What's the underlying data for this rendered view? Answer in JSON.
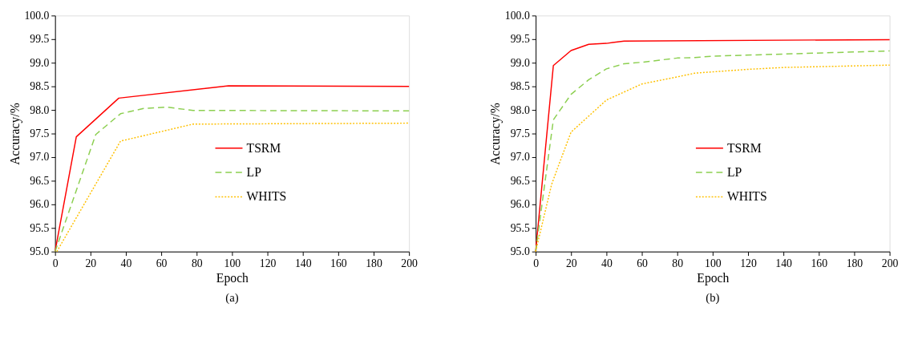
{
  "chart_data": [
    {
      "type": "line",
      "title": "(a)",
      "xlabel": "Epoch",
      "ylabel": "Accuracy/%",
      "xlim": [
        0,
        200
      ],
      "xticks": [
        0,
        20,
        40,
        60,
        80,
        100,
        120,
        140,
        160,
        180,
        200
      ],
      "ylim": [
        95.0,
        100.0
      ],
      "yticks": [
        {
          "value": 95,
          "label": "95.0"
        },
        95.5,
        {
          "value": 96,
          "label": "96.0"
        },
        96.5,
        {
          "value": 97,
          "label": "97.0"
        },
        97.5,
        {
          "value": 98,
          "label": "98.0"
        },
        98.5,
        {
          "value": 99,
          "label": "99.0"
        },
        99.5,
        {
          "value": 100,
          "label": "100.0"
        }
      ],
      "grid": false,
      "legend": "right",
      "marker": "none",
      "series": [
        {
          "name": "TSRM",
          "color": "#ff0000",
          "line_style": "solid",
          "x": [
            0,
            12,
            36,
            98,
            200
          ],
          "values": [
            95.0,
            97.43,
            98.25,
            98.51,
            98.5
          ]
        },
        {
          "name": "LP",
          "color": "#8ccf50",
          "line_style": "dashed",
          "x": [
            0,
            23,
            37,
            50,
            63,
            78,
            200
          ],
          "values": [
            95.0,
            97.48,
            97.92,
            98.03,
            98.06,
            97.99,
            97.98
          ]
        },
        {
          "name": "WHITS",
          "color": "#ffc000",
          "line_style": "dotted",
          "x": [
            1,
            37,
            78,
            200
          ],
          "values": [
            95.0,
            97.34,
            97.7,
            97.72
          ]
        }
      ]
    },
    {
      "type": "line",
      "title": "(b)",
      "xlabel": "Epoch",
      "ylabel": "Accuracy/%",
      "xlim": [
        0,
        200
      ],
      "xticks": [
        0,
        20,
        40,
        60,
        80,
        100,
        120,
        140,
        160,
        180,
        200
      ],
      "ylim": [
        95.0,
        100.0
      ],
      "yticks": [
        {
          "value": 95,
          "label": "95.0"
        },
        95.5,
        {
          "value": 96,
          "label": "96.0"
        },
        96.5,
        {
          "value": 97,
          "label": "97.0"
        },
        97.5,
        {
          "value": 98,
          "label": "98.0"
        },
        98.5,
        {
          "value": 99,
          "label": "99.0"
        },
        99.5,
        {
          "value": 100,
          "label": "100.0"
        }
      ],
      "grid": false,
      "legend": "right",
      "marker": "none",
      "series": [
        {
          "name": "TSRM",
          "color": "#ff0000",
          "line_style": "solid",
          "x": [
            0,
            10,
            20,
            30,
            40,
            50,
            200
          ],
          "values": [
            95.0,
            98.94,
            99.26,
            99.39,
            99.41,
            99.46,
            99.49
          ]
        },
        {
          "name": "LP",
          "color": "#8ccf50",
          "line_style": "dashed",
          "x": [
            0,
            10,
            20,
            30,
            40,
            50,
            60,
            80,
            90,
            100,
            200
          ],
          "values": [
            95.0,
            97.79,
            98.33,
            98.64,
            98.87,
            98.98,
            99.01,
            99.1,
            99.11,
            99.14,
            99.25
          ]
        },
        {
          "name": "WHITS",
          "color": "#ffc000",
          "line_style": "dotted",
          "x": [
            0,
            9,
            13,
            20,
            30,
            40,
            60,
            80,
            90,
            120,
            140,
            200
          ],
          "values": [
            95.0,
            96.42,
            96.83,
            97.53,
            97.87,
            98.21,
            98.55,
            98.7,
            98.78,
            98.86,
            98.9,
            98.95
          ]
        }
      ]
    }
  ]
}
